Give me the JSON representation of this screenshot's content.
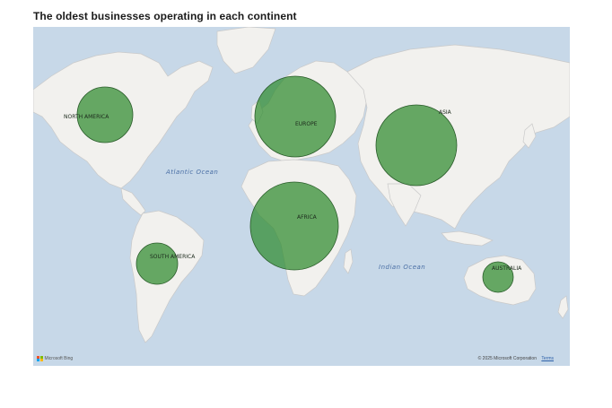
{
  "title": "The oldest businesses operating in each continent",
  "map": {
    "ocean_labels": [
      "Atlantic Ocean",
      "Indian Ocean"
    ],
    "attribution": "Microsoft Bing",
    "copyright": "© 2025 Microsoft Corporation",
    "terms": "Terms"
  },
  "continents": [
    {
      "name": "NORTH AMERICA"
    },
    {
      "name": "SOUTH AMERICA"
    },
    {
      "name": "EUROPE"
    },
    {
      "name": "AFRICA"
    },
    {
      "name": "ASIA"
    },
    {
      "name": "AUSTRALIA"
    }
  ],
  "colors": {
    "ocean": "#c7d8e8",
    "land": "#f2f1ee",
    "bubble": "#2e8b2e"
  }
}
